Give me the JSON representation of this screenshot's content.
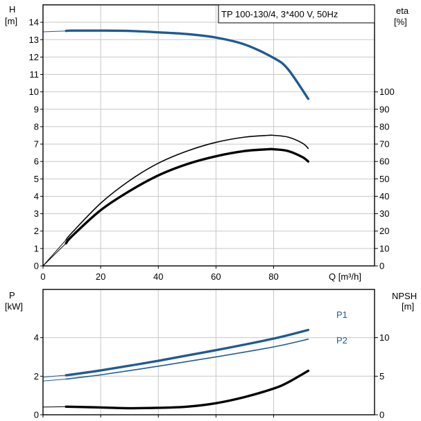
{
  "colors": {
    "blue": "#1f5a94",
    "black": "#000000",
    "grid": "#c8c8c8"
  },
  "chart_data": [
    {
      "type": "line",
      "title": "TP 100-130/4, 3*400 V, 50Hz",
      "xlabel": "Q [m³/h]",
      "ylabel_left": "H",
      "ylabel_left_unit": "[m]",
      "ylabel_right": "eta",
      "ylabel_right_unit": "[%]",
      "xlim": [
        0,
        115
      ],
      "ylim_left": [
        0,
        15
      ],
      "ylim_right": [
        0,
        150
      ],
      "x_ticks": [
        0,
        20,
        40,
        60,
        80
      ],
      "y_ticks_left": [
        0,
        1,
        2,
        3,
        4,
        5,
        6,
        7,
        8,
        9,
        10,
        11,
        12,
        13,
        14
      ],
      "y_ticks_right": [
        0,
        10,
        20,
        30,
        40,
        50,
        60,
        70,
        80,
        90,
        100
      ],
      "grid": true,
      "series": [
        {
          "key": "head",
          "axis": "left",
          "color": "#1f5a94",
          "weight": "thick",
          "x": [
            0,
            8,
            10,
            20,
            30,
            40,
            50,
            60,
            70,
            80,
            85,
            92
          ],
          "y": [
            13.45,
            13.5,
            13.52,
            13.52,
            13.5,
            13.42,
            13.32,
            13.12,
            12.72,
            11.95,
            11.3,
            9.6
          ],
          "x_start_dashed": 8
        },
        {
          "key": "eta_hydraulic",
          "axis": "right",
          "color": "#000000",
          "weight": "thin",
          "x": [
            0,
            8,
            10,
            20,
            30,
            40,
            50,
            60,
            70,
            78,
            80,
            85,
            90,
            92
          ],
          "y": [
            0,
            15,
            19,
            36,
            49,
            59,
            66,
            71,
            74,
            75,
            75,
            74,
            70.5,
            67.5
          ],
          "x_start_dashed": 8
        },
        {
          "key": "eta_total",
          "axis": "right",
          "color": "#000000",
          "weight": "thick",
          "x": [
            0,
            8,
            10,
            20,
            30,
            40,
            50,
            60,
            70,
            78,
            80,
            85,
            90,
            92
          ],
          "y": [
            0,
            13,
            17,
            32,
            43,
            52,
            58.5,
            63,
            66,
            67,
            67,
            66,
            62.5,
            60
          ],
          "x_start_dashed": 8
        }
      ]
    },
    {
      "type": "line",
      "ylabel_left": "P",
      "ylabel_left_unit": "[kW]",
      "ylabel_right": "NPSH",
      "ylabel_right_unit": "[m]",
      "xlim": [
        0,
        115
      ],
      "ylim_left": [
        0,
        6.5
      ],
      "ylim_right": [
        0,
        16.25
      ],
      "x_ticks": [
        0,
        20,
        40,
        60,
        80
      ],
      "y_ticks_left": [
        0,
        2,
        4
      ],
      "y_ticks_right": [
        0,
        5,
        10
      ],
      "grid": true,
      "series": [
        {
          "key": "p1",
          "name": "P1",
          "axis": "left",
          "color": "#1f5a94",
          "weight": "thick",
          "x": [
            0,
            8,
            20,
            40,
            60,
            80,
            92
          ],
          "y": [
            1.95,
            2.05,
            2.3,
            2.8,
            3.35,
            3.95,
            4.4
          ],
          "x_start_dashed": 8
        },
        {
          "key": "p2",
          "name": "P2",
          "axis": "left",
          "color": "#1f5a94",
          "weight": "thin",
          "x": [
            0,
            8,
            20,
            40,
            60,
            80,
            92
          ],
          "y": [
            1.75,
            1.85,
            2.07,
            2.52,
            3.0,
            3.52,
            3.92
          ],
          "x_start_dashed": 8
        },
        {
          "key": "npsh",
          "axis": "right",
          "color": "#000000",
          "weight": "thick",
          "x": [
            0,
            8,
            20,
            30,
            40,
            50,
            60,
            70,
            80,
            85,
            92
          ],
          "y": [
            1.0,
            1.05,
            0.95,
            0.85,
            0.9,
            1.05,
            1.5,
            2.3,
            3.4,
            4.2,
            5.7
          ],
          "x_start_dashed": 8
        }
      ]
    }
  ]
}
